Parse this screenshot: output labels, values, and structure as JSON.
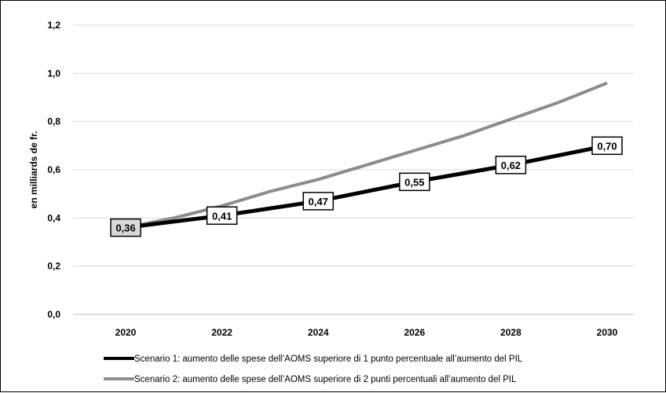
{
  "chart_data": {
    "type": "line",
    "title": "",
    "xlabel": "",
    "ylabel": "en milliards de fr.",
    "x": [
      "2020",
      "2021",
      "2022",
      "2023",
      "2024",
      "2025",
      "2026",
      "2027",
      "2028",
      "2029",
      "2030"
    ],
    "x_tick_labels": [
      "2020",
      "2022",
      "2024",
      "2026",
      "2028",
      "2030"
    ],
    "y_tick_labels": [
      "0,0",
      "0,2",
      "0,4",
      "0,6",
      "0,8",
      "1,0",
      "1,2"
    ],
    "ylim": [
      0,
      1.2
    ],
    "grid": true,
    "legend_position": "bottom",
    "series": [
      {
        "name": "Scenario 1: aumento delle spese dell’AOMS superiore di 1 punto percentuale all’aumento del PIL",
        "color": "#000000",
        "values": [
          0.36,
          0.385,
          0.41,
          0.44,
          0.47,
          0.51,
          0.55,
          0.585,
          0.62,
          0.66,
          0.7
        ],
        "data_labels": [
          {
            "x": "2020",
            "text": "0,36"
          },
          {
            "x": "2022",
            "text": "0,41"
          },
          {
            "x": "2024",
            "text": "0,47"
          },
          {
            "x": "2026",
            "text": "0,55"
          },
          {
            "x": "2028",
            "text": "0,62"
          },
          {
            "x": "2030",
            "text": "0,70"
          }
        ]
      },
      {
        "name": "Scenario 2: aumento delle spese dell’AOMS superiore di 2 punti percentuali all’aumento del PIL",
        "color": "#8c8c8c",
        "values": [
          0.36,
          0.4,
          0.45,
          0.51,
          0.56,
          0.62,
          0.68,
          0.74,
          0.81,
          0.88,
          0.96
        ]
      }
    ]
  }
}
